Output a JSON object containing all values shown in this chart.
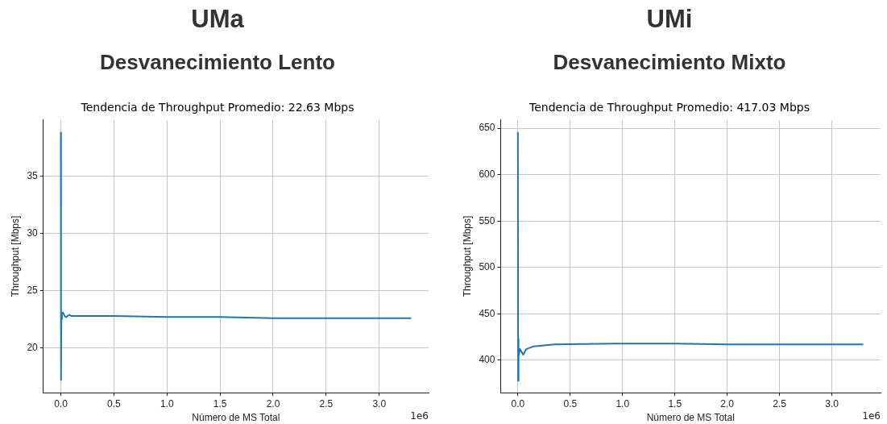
{
  "chart_data": [
    {
      "type": "line",
      "title": "UMa",
      "subtitle": "Desvanecimiento Lento",
      "xlabel": "Número de MS Total",
      "ylabel": "Throughput [Mbps]",
      "annotations": [
        "Tendencia de Throughput Promedio: 22.63 Mbps",
        "1e6"
      ],
      "x": [
        0,
        0.002,
        0.005,
        0.01,
        0.02,
        0.035,
        0.05,
        0.08,
        0.1,
        0.5,
        1.0,
        1.5,
        2.0,
        3.3
      ],
      "series": [
        {
          "color": "#1f77b4",
          "values": [
            38.8,
            17.2,
            22.5,
            23.0,
            23.1,
            22.8,
            22.7,
            22.9,
            22.8,
            22.8,
            22.7,
            22.7,
            22.6,
            22.6
          ]
        }
      ],
      "xlim": [
        -0.165,
        3.465
      ],
      "xticks": [
        {
          "value": 0,
          "label": "0.0"
        },
        0.5,
        {
          "value": 1,
          "label": "1.0"
        },
        1.5,
        {
          "value": 2,
          "label": "2.0"
        },
        2.5,
        {
          "value": 3,
          "label": "3.0"
        }
      ],
      "ylim": [
        16.1,
        39.9
      ],
      "yticks": [
        20,
        25,
        30,
        35
      ],
      "grid": true,
      "marker": "none",
      "line_style": "solid"
    },
    {
      "type": "line",
      "title": "UMi",
      "subtitle": "Desvanecimiento Mixto",
      "xlabel": "Número de MS Total",
      "ylabel": "Throughput [Mbps]",
      "annotations": [
        "Tendencia de Throughput Promedio: 417.03 Mbps",
        "1e6"
      ],
      "x": [
        0,
        0.002,
        0.004,
        0.008,
        0.02,
        0.05,
        0.08,
        0.15,
        0.25,
        0.35,
        1.0,
        1.5,
        2.0,
        3.3
      ],
      "series": [
        {
          "color": "#1f77b4",
          "values": [
            646,
            378,
            423,
            404,
            412,
            406,
            412,
            415,
            416,
            417,
            418,
            418,
            417,
            417
          ]
        }
      ],
      "xlim": [
        -0.165,
        3.465
      ],
      "xticks": [
        {
          "value": 0,
          "label": "0.0"
        },
        0.5,
        {
          "value": 1,
          "label": "1.0"
        },
        1.5,
        {
          "value": 2,
          "label": "2.0"
        },
        2.5,
        {
          "value": 3,
          "label": "3.0"
        }
      ],
      "ylim": [
        365,
        659
      ],
      "yticks": [
        400,
        450,
        500,
        550,
        600,
        650
      ],
      "grid": true,
      "marker": "none",
      "line_style": "solid"
    }
  ]
}
